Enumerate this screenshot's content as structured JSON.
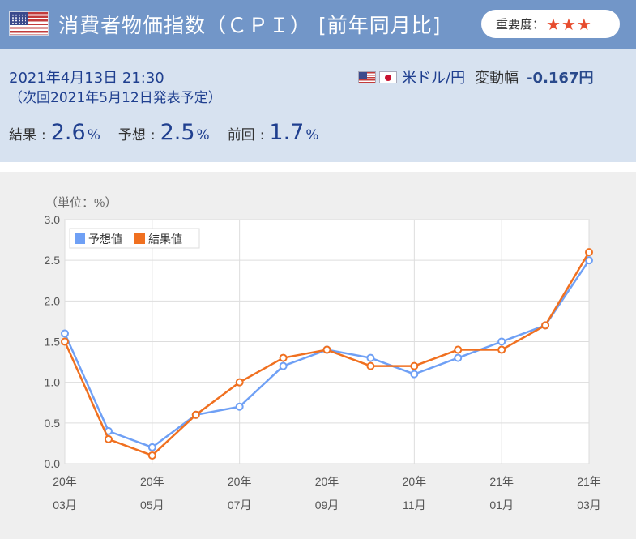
{
  "header": {
    "title": "消費者物価指数（ＣＰＩ） [前年同月比]",
    "importance_label": "重要度：",
    "importance_stars": "★★★",
    "flag_icon": "us-flag-icon",
    "bg_color": "#7296c8"
  },
  "info": {
    "datetime": "2021年4月13日 21:30",
    "next_release": "（次回2021年5月12日発表予定）",
    "pair": "米ドル/円",
    "change_label": "変動幅",
    "change_value": "-0.167円",
    "result_label": "結果",
    "result_value": "2.6",
    "forecast_label": "予想",
    "forecast_value": "2.5",
    "previous_label": "前回",
    "previous_value": "1.7",
    "percent": "%",
    "colon": ":"
  },
  "chart_data": {
    "type": "line",
    "unit_label": "（単位：%）",
    "ylim": [
      0,
      3
    ],
    "yticks": [
      "0.0",
      "0.5",
      "1.0",
      "1.5",
      "2.0",
      "2.5",
      "3.0"
    ],
    "x_tick_labels": [
      {
        "year": "20年",
        "month": "03月"
      },
      {
        "year": "20年",
        "month": "05月"
      },
      {
        "year": "20年",
        "month": "07月"
      },
      {
        "year": "20年",
        "month": "09月"
      },
      {
        "year": "20年",
        "month": "11月"
      },
      {
        "year": "21年",
        "month": "01月"
      },
      {
        "year": "21年",
        "month": "03月"
      }
    ],
    "categories": [
      "2020-03",
      "2020-04",
      "2020-05",
      "2020-06",
      "2020-07",
      "2020-08",
      "2020-09",
      "2020-10",
      "2020-11",
      "2020-12",
      "2021-01",
      "2021-02",
      "2021-03"
    ],
    "series": [
      {
        "name": "予想値",
        "color": "#6fa0f5",
        "values": [
          1.6,
          0.4,
          0.2,
          0.6,
          0.7,
          1.2,
          1.4,
          1.3,
          1.1,
          1.3,
          1.5,
          1.7,
          2.5
        ]
      },
      {
        "name": "結果値",
        "color": "#f07020",
        "values": [
          1.5,
          0.3,
          0.1,
          0.6,
          1.0,
          1.3,
          1.4,
          1.2,
          1.2,
          1.4,
          1.4,
          1.7,
          2.6
        ]
      }
    ],
    "grid": true,
    "legend_position": "top-left"
  }
}
